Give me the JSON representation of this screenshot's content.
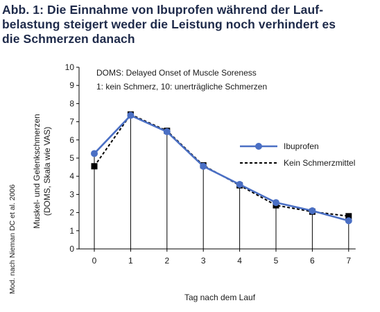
{
  "title_lines": [
    "Abb. 1: Die Einnahme von Ibuprofen während der Lauf-",
    "belastung steigert weder die Leistung noch verhindert es",
    "die Schmerzen danach"
  ],
  "source_note": "Mod. nach Nieman DC et al. 2006",
  "annotation_lines": [
    "DOMS: Delayed Onset of Muscle Soreness",
    "1: kein Schmerz, 10: unerträgliche Schmerzen"
  ],
  "colors": {
    "ibuprofen": "#4a6fc4",
    "placebo": "#000000",
    "title": "#1e2a4a"
  },
  "chart_data": {
    "type": "line",
    "xlabel": "Tag nach dem Lauf",
    "ylabel_lines": [
      "Muskel- und Gelenkschmerzen",
      "(DOMS, Skala wie VAS)"
    ],
    "x": [
      0,
      1,
      2,
      3,
      4,
      5,
      6,
      7
    ],
    "xlim": [
      0,
      7
    ],
    "ylim": [
      0,
      10
    ],
    "yticks": [
      0,
      1,
      2,
      3,
      4,
      5,
      6,
      7,
      8,
      9,
      10
    ],
    "grid": false,
    "legend_position": "right",
    "series": [
      {
        "name": "Ibuprofen",
        "style": "solid-circle",
        "values": [
          5.25,
          7.35,
          6.45,
          4.55,
          3.55,
          2.55,
          2.1,
          1.55
        ]
      },
      {
        "name": "Kein Schmerzmittel",
        "style": "dashed-square",
        "values": [
          4.55,
          7.4,
          6.5,
          4.6,
          3.5,
          2.4,
          2.05,
          1.8
        ]
      }
    ]
  }
}
